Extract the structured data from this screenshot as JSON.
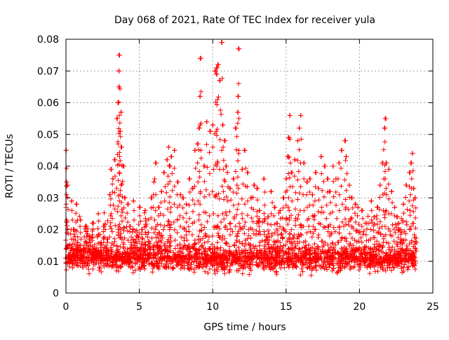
{
  "chart_data": {
    "type": "scatter",
    "title": "Day 068 of 2021, Rate Of TEC Index for receiver yula",
    "xlabel": "GPS time / hours",
    "ylabel": "ROTI / TECUs",
    "xlim": [
      0,
      25
    ],
    "ylim": [
      0,
      0.08
    ],
    "x_ticks": [
      0,
      5,
      10,
      15,
      20,
      25
    ],
    "x_tick_labels": [
      "0",
      "5",
      "10",
      "15",
      "20",
      "25"
    ],
    "y_ticks": [
      0,
      0.01,
      0.02,
      0.03,
      0.04,
      0.05,
      0.06,
      0.07,
      0.08
    ],
    "y_tick_labels": [
      "0",
      "0.01",
      "0.02",
      "0.03",
      "0.04",
      "0.05",
      "0.06",
      "0.07",
      "0.08"
    ],
    "grid": true,
    "marker": "plus",
    "color": "#ff0000",
    "series": [
      {
        "points": [
          [
            0.0,
            0.045
          ],
          [
            0.05,
            0.035
          ],
          [
            0.1,
            0.034
          ],
          [
            0.2,
            0.012
          ],
          [
            0.3,
            0.01
          ],
          [
            0.4,
            0.029
          ],
          [
            0.5,
            0.02
          ],
          [
            0.7,
            0.028
          ],
          [
            0.8,
            0.016
          ],
          [
            1.0,
            0.023
          ],
          [
            1.2,
            0.014
          ],
          [
            1.4,
            0.021
          ],
          [
            1.6,
            0.017
          ],
          [
            1.8,
            0.022
          ],
          [
            2.0,
            0.013
          ],
          [
            2.2,
            0.025
          ],
          [
            2.4,
            0.016
          ],
          [
            2.6,
            0.021
          ],
          [
            2.8,
            0.017
          ],
          [
            3.0,
            0.031
          ],
          [
            3.1,
            0.039
          ],
          [
            3.2,
            0.036
          ],
          [
            3.35,
            0.042
          ],
          [
            3.5,
            0.055
          ],
          [
            3.55,
            0.06
          ],
          [
            3.6,
            0.065
          ],
          [
            3.62,
            0.07
          ],
          [
            3.65,
            0.075
          ],
          [
            3.7,
            0.051
          ],
          [
            3.75,
            0.057
          ],
          [
            3.8,
            0.046
          ],
          [
            3.9,
            0.04
          ],
          [
            4.0,
            0.03
          ],
          [
            4.2,
            0.028
          ],
          [
            4.4,
            0.021
          ],
          [
            4.6,
            0.029
          ],
          [
            4.8,
            0.018
          ],
          [
            5.0,
            0.027
          ],
          [
            5.2,
            0.02
          ],
          [
            5.4,
            0.026
          ],
          [
            5.6,
            0.019
          ],
          [
            5.8,
            0.03
          ],
          [
            6.0,
            0.035
          ],
          [
            6.1,
            0.041
          ],
          [
            6.3,
            0.027
          ],
          [
            6.5,
            0.032
          ],
          [
            6.7,
            0.038
          ],
          [
            6.9,
            0.042
          ],
          [
            7.0,
            0.046
          ],
          [
            7.1,
            0.04
          ],
          [
            7.2,
            0.043
          ],
          [
            7.4,
            0.045
          ],
          [
            7.6,
            0.035
          ],
          [
            7.8,
            0.031
          ],
          [
            8.0,
            0.03
          ],
          [
            8.2,
            0.028
          ],
          [
            8.4,
            0.036
          ],
          [
            8.6,
            0.033
          ],
          [
            8.8,
            0.045
          ],
          [
            9.0,
            0.047
          ],
          [
            9.1,
            0.052
          ],
          [
            9.15,
            0.062
          ],
          [
            9.2,
            0.074
          ],
          [
            9.4,
            0.04
          ],
          [
            9.6,
            0.054
          ],
          [
            9.8,
            0.051
          ],
          [
            10.0,
            0.053
          ],
          [
            10.2,
            0.07
          ],
          [
            10.25,
            0.069
          ],
          [
            10.3,
            0.071
          ],
          [
            10.35,
            0.072
          ],
          [
            10.5,
            0.067
          ],
          [
            10.6,
            0.079
          ],
          [
            10.7,
            0.053
          ],
          [
            10.8,
            0.048
          ],
          [
            10.9,
            0.04
          ],
          [
            11.0,
            0.038
          ],
          [
            11.2,
            0.033
          ],
          [
            11.4,
            0.036
          ],
          [
            11.6,
            0.052
          ],
          [
            11.7,
            0.057
          ],
          [
            11.75,
            0.062
          ],
          [
            11.8,
            0.077
          ],
          [
            12.0,
            0.039
          ],
          [
            12.2,
            0.045
          ],
          [
            12.4,
            0.038
          ],
          [
            12.6,
            0.03
          ],
          [
            12.8,
            0.034
          ],
          [
            13.0,
            0.033
          ],
          [
            13.2,
            0.026
          ],
          [
            13.5,
            0.036
          ],
          [
            13.8,
            0.024
          ],
          [
            14.0,
            0.032
          ],
          [
            14.2,
            0.027
          ],
          [
            14.4,
            0.022
          ],
          [
            14.6,
            0.026
          ],
          [
            14.8,
            0.03
          ],
          [
            15.0,
            0.036
          ],
          [
            15.1,
            0.043
          ],
          [
            15.2,
            0.049
          ],
          [
            15.25,
            0.056
          ],
          [
            15.4,
            0.038
          ],
          [
            15.6,
            0.042
          ],
          [
            15.8,
            0.048
          ],
          [
            15.9,
            0.052
          ],
          [
            16.0,
            0.056
          ],
          [
            16.2,
            0.041
          ],
          [
            16.4,
            0.035
          ],
          [
            16.6,
            0.036
          ],
          [
            16.8,
            0.031
          ],
          [
            17.0,
            0.038
          ],
          [
            17.2,
            0.033
          ],
          [
            17.4,
            0.043
          ],
          [
            17.6,
            0.04
          ],
          [
            17.8,
            0.036
          ],
          [
            18.0,
            0.032
          ],
          [
            18.2,
            0.04
          ],
          [
            18.4,
            0.036
          ],
          [
            18.6,
            0.041
          ],
          [
            18.8,
            0.045
          ],
          [
            19.0,
            0.048
          ],
          [
            19.1,
            0.043
          ],
          [
            19.3,
            0.034
          ],
          [
            19.5,
            0.03
          ],
          [
            19.7,
            0.028
          ],
          [
            19.9,
            0.027
          ],
          [
            20.2,
            0.026
          ],
          [
            20.5,
            0.022
          ],
          [
            20.8,
            0.029
          ],
          [
            21.0,
            0.024
          ],
          [
            21.2,
            0.027
          ],
          [
            21.4,
            0.034
          ],
          [
            21.6,
            0.041
          ],
          [
            21.7,
            0.052
          ],
          [
            21.75,
            0.055
          ],
          [
            21.8,
            0.041
          ],
          [
            22.0,
            0.039
          ],
          [
            22.2,
            0.032
          ],
          [
            22.4,
            0.027
          ],
          [
            22.6,
            0.024
          ],
          [
            22.8,
            0.02
          ],
          [
            23.0,
            0.028
          ],
          [
            23.2,
            0.034
          ],
          [
            23.4,
            0.038
          ],
          [
            23.5,
            0.041
          ],
          [
            23.6,
            0.044
          ],
          [
            23.7,
            0.033
          ],
          [
            23.8,
            0.03
          ]
        ]
      }
    ],
    "noise_band": {
      "x_range": [
        0,
        23.9
      ],
      "y_center": 0.011,
      "y_spread": 0.006,
      "count": 2400
    }
  }
}
